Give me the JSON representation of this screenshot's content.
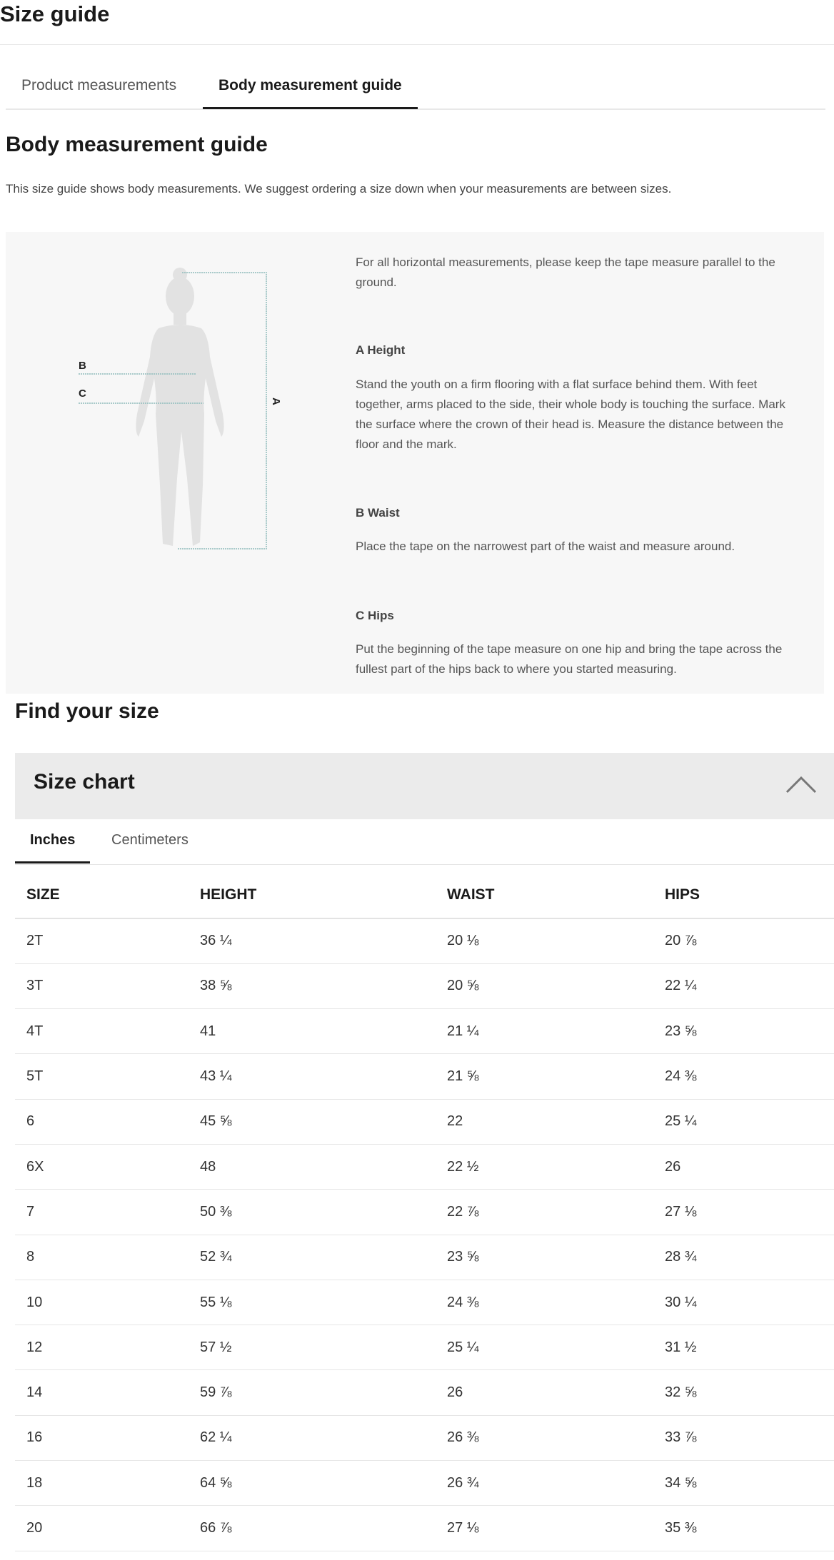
{
  "title": "Size guide",
  "tabs": [
    {
      "label": "Product measurements",
      "active": false
    },
    {
      "label": "Body measurement guide",
      "active": true
    }
  ],
  "guide": {
    "heading": "Body measurement guide",
    "intro": "This size guide shows body measurements. We suggest ordering a size down when your measurements are between sizes.",
    "diagram_labels": {
      "a": "A",
      "b": "B",
      "c": "C"
    },
    "note": "For all horizontal measurements, please keep the tape measure parallel to the ground.",
    "sections": [
      {
        "title": "A Height",
        "text": "Stand the youth on a firm flooring with a flat surface behind them. With feet together, arms placed to the side, their whole body is touching the surface. Mark the surface where the crown of their head is. Measure the distance between the floor and the mark."
      },
      {
        "title": "B Waist",
        "text": "Place the tape on the narrowest part of the waist and measure around."
      },
      {
        "title": "C Hips",
        "text": "Put the beginning of the tape measure on one hip and bring the tape across the fullest part of the hips back to where you started measuring."
      }
    ]
  },
  "find": {
    "heading": "Find your size"
  },
  "size_chart": {
    "title": "Size chart",
    "expanded": true,
    "toggle_icon": "chevron-up-icon",
    "units": [
      {
        "label": "Inches",
        "active": true
      },
      {
        "label": "Centimeters",
        "active": false
      }
    ],
    "columns": [
      "SIZE",
      "HEIGHT",
      "WAIST",
      "HIPS"
    ],
    "rows": [
      [
        "2T",
        "36 ¼",
        "20 ⅛",
        "20 ⅞"
      ],
      [
        "3T",
        "38 ⅝",
        "20 ⅝",
        "22 ¼"
      ],
      [
        "4T",
        "41",
        "21 ¼",
        "23 ⅝"
      ],
      [
        "5T",
        "43 ¼",
        "21 ⅝",
        "24 ⅜"
      ],
      [
        "6",
        "45 ⅝",
        "22",
        "25 ¼"
      ],
      [
        "6X",
        "48",
        "22 ½",
        "26"
      ],
      [
        "7",
        "50 ⅜",
        "22 ⅞",
        "27 ⅛"
      ],
      [
        "8",
        "52 ¾",
        "23 ⅝",
        "28 ¾"
      ],
      [
        "10",
        "55 ⅛",
        "24 ⅜",
        "30 ¼"
      ],
      [
        "12",
        "57 ½",
        "25 ¼",
        "31 ½"
      ],
      [
        "14",
        "59 ⅞",
        "26",
        "32 ⅝"
      ],
      [
        "16",
        "62 ¼",
        "26 ⅜",
        "33 ⅞"
      ],
      [
        "18",
        "64 ⅝",
        "26 ¾",
        "34 ⅝"
      ],
      [
        "20",
        "66 ⅞",
        "27 ⅛",
        "35 ⅜"
      ]
    ]
  },
  "colors": {
    "accent_line": "#8fbcbc",
    "panel_bg": "#f7f7f7",
    "header_bg": "#ebebeb"
  }
}
